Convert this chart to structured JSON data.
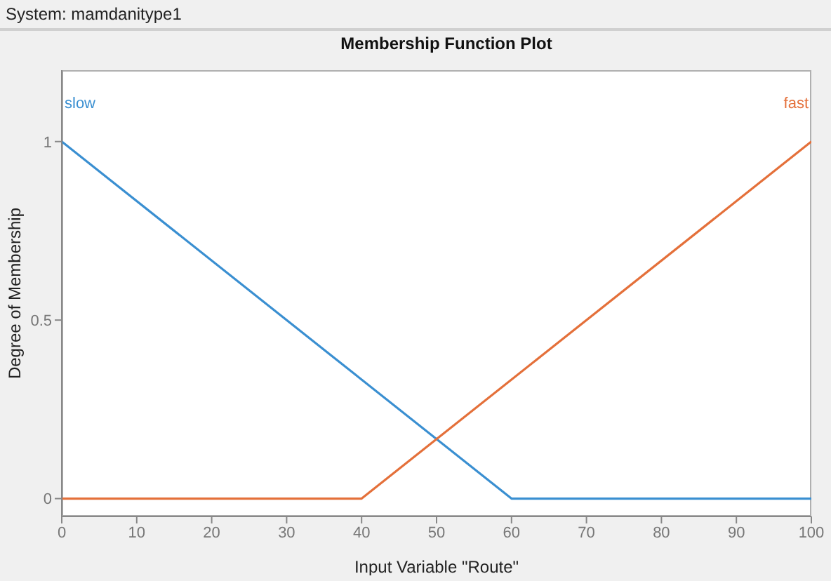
{
  "chart_data": {
    "type": "line",
    "subtitle": "System: mamdanitype1",
    "title": "Membership Function Plot",
    "xlabel": "Input Variable \"Route\"",
    "ylabel": "Degree of Membership",
    "series": [
      {
        "name": "slow",
        "color": "#3a8fd1",
        "x": [
          0,
          60,
          100
        ],
        "values": [
          1,
          0,
          0
        ]
      },
      {
        "name": "fast",
        "color": "#e4703a",
        "x": [
          0,
          40,
          100
        ],
        "values": [
          0,
          0,
          1
        ]
      }
    ],
    "xlim": [
      0,
      100
    ],
    "xticks": [
      0,
      10,
      20,
      30,
      40,
      50,
      60,
      70,
      80,
      90,
      100
    ],
    "ylim": [
      -0.05,
      1.2
    ],
    "yticks": [
      0,
      0.5,
      1
    ],
    "grid": false,
    "legend": false,
    "marker": "none",
    "line_style": "solid"
  }
}
